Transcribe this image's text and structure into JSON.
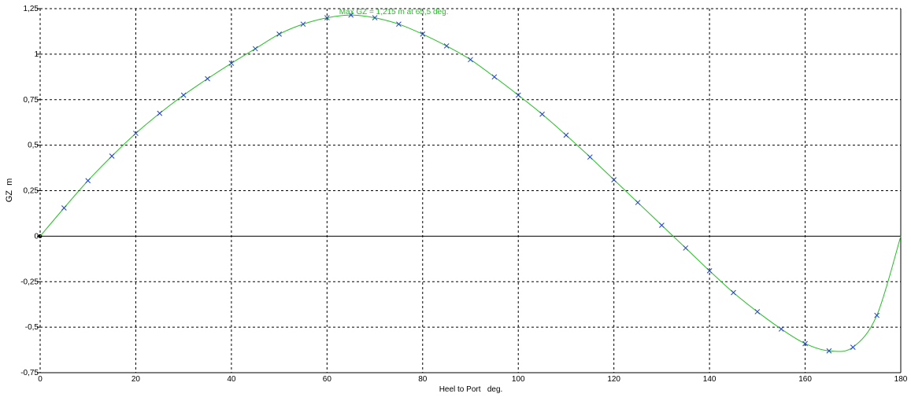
{
  "chart_data": {
    "type": "line",
    "xlabel": "Heel to Port   deg.",
    "ylabel": "GZ  m",
    "xlim": [
      0,
      180
    ],
    "ylim": [
      -0.75,
      1.25
    ],
    "x_ticks": [
      0,
      20,
      40,
      60,
      80,
      100,
      120,
      140,
      160,
      180
    ],
    "x_tick_labels": [
      "0",
      "20",
      "40",
      "60",
      "80",
      "100",
      "120",
      "140",
      "160",
      "180"
    ],
    "y_ticks": [
      -0.75,
      -0.5,
      -0.25,
      0,
      0.25,
      0.5,
      0.75,
      1,
      1.25
    ],
    "y_tick_labels": [
      "-0,75",
      "-0,5",
      "-0,25",
      "0",
      "0,25",
      "0,5",
      "0,75",
      "1",
      "1,25"
    ],
    "grid": true,
    "annotation": {
      "text": "Max GZ = 1,215 m at 65,5 deg.",
      "x": 65.5,
      "y": 1.215
    },
    "colors": {
      "curve": "#22c022",
      "markers": "#1f3fd0",
      "grid": "#000000"
    },
    "series": [
      {
        "x": [
          0,
          5,
          10,
          15,
          20,
          25,
          30,
          35,
          40,
          45,
          50,
          55,
          60,
          65,
          70,
          75,
          80,
          85,
          90,
          95,
          100,
          105,
          110,
          115,
          120,
          125,
          130,
          135,
          140,
          145,
          150,
          155,
          160,
          165,
          170,
          175,
          180
        ],
        "y": [
          0,
          0.155,
          0.305,
          0.44,
          0.565,
          0.675,
          0.775,
          0.865,
          0.95,
          1.03,
          1.11,
          1.165,
          1.2,
          1.215,
          1.2,
          1.165,
          1.11,
          1.045,
          0.97,
          0.875,
          0.775,
          0.67,
          0.555,
          0.435,
          0.31,
          0.185,
          0.06,
          -0.065,
          -0.19,
          -0.31,
          -0.415,
          -0.51,
          -0.59,
          -0.63,
          -0.61,
          -0.435,
          0
        ]
      }
    ]
  }
}
